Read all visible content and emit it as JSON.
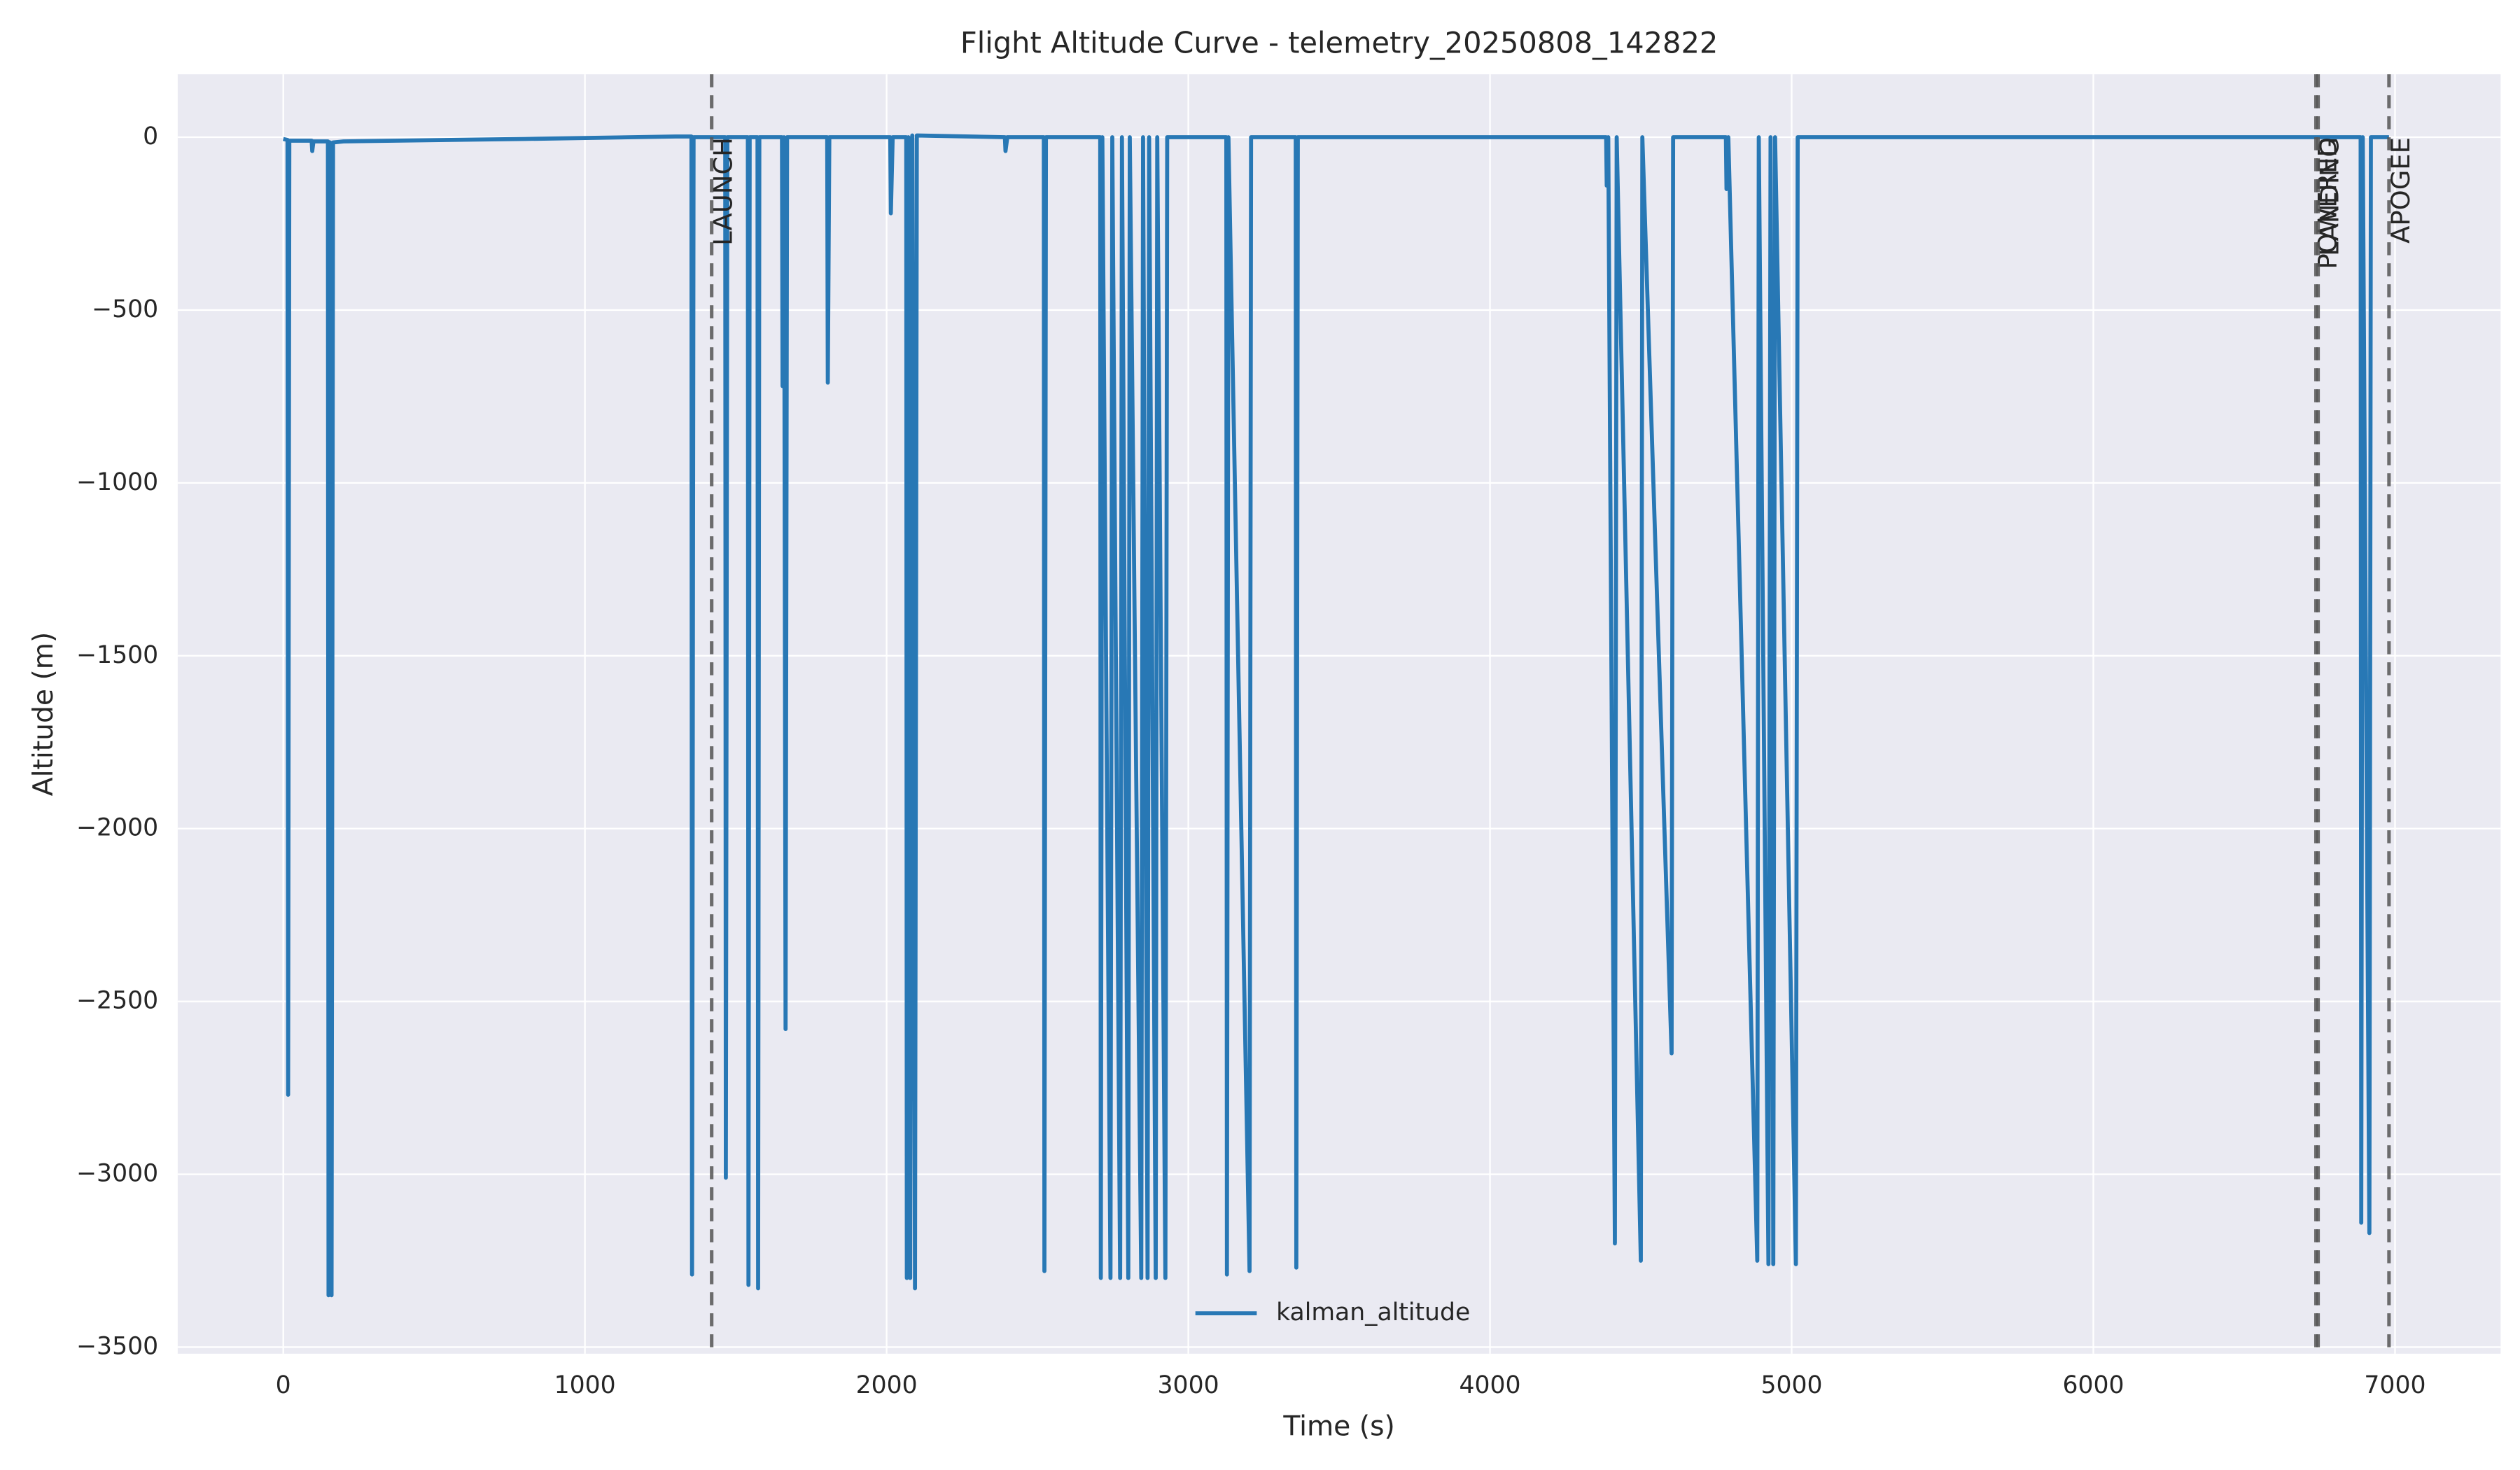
{
  "chart_data": {
    "type": "line",
    "title": "Flight Altitude Curve - telemetry_20250808_142822",
    "x_label": "Time (s)",
    "y_label": "Altitude (m)",
    "x": [
      0,
      14,
      16,
      20,
      94,
      96,
      100,
      148,
      150,
      155,
      160,
      165,
      200,
      800,
      1300,
      1353,
      1355,
      1360,
      1465,
      1467,
      1472,
      1540,
      1542,
      1546,
      1572,
      1574,
      1578,
      1653,
      1655,
      1660,
      1665,
      1670,
      1803,
      1805,
      1810,
      2012,
      2014,
      2020,
      2065,
      2067,
      2072,
      2078,
      2085,
      2094,
      2100,
      2392,
      2394,
      2400,
      2521,
      2523,
      2528,
      2708,
      2710,
      2715,
      2742,
      2748,
      2774,
      2780,
      2801,
      2806,
      2844,
      2850,
      2865,
      2870,
      2892,
      2897,
      2924,
      2930,
      3126,
      3128,
      3133,
      3203,
      3208,
      3356,
      3358,
      3363,
      4385,
      4387,
      4392,
      4414,
      4420,
      4500,
      4505,
      4602,
      4607,
      4782,
      4784,
      4790,
      4886,
      4891,
      4923,
      4930,
      4939,
      4945,
      5014,
      5020,
      6886,
      6888,
      6893,
      6915,
      6920,
      6980
    ],
    "series": [
      {
        "name": "kalman_altitude",
        "color": "#2878b5",
        "values": [
          -5,
          -8,
          -2770,
          -10,
          -10,
          -40,
          -12,
          -12,
          -3350,
          -15,
          -3350,
          -15,
          -12,
          -5,
          2,
          2,
          -3290,
          0,
          0,
          -3010,
          0,
          0,
          -3320,
          0,
          0,
          -3330,
          0,
          0,
          -720,
          0,
          -2580,
          0,
          0,
          -710,
          0,
          0,
          -220,
          0,
          0,
          -3300,
          0,
          -3300,
          5,
          -3330,
          5,
          0,
          -40,
          0,
          0,
          -3280,
          0,
          0,
          -3300,
          0,
          -3300,
          0,
          -3300,
          0,
          -3300,
          0,
          -3300,
          0,
          -3300,
          0,
          -3300,
          0,
          -3300,
          0,
          0,
          -3290,
          0,
          -3280,
          0,
          0,
          -3270,
          0,
          0,
          -140,
          0,
          -3200,
          0,
          -3250,
          0,
          -2650,
          0,
          0,
          -150,
          0,
          -3250,
          0,
          -3260,
          0,
          -3260,
          0,
          -3260,
          0,
          0,
          -3140,
          0,
          -3170,
          0,
          0
        ]
      }
    ],
    "events": [
      {
        "name": "LAUNCH",
        "x": 1420
      },
      {
        "name": "POWERED",
        "x": 6738
      },
      {
        "name": "LANDING",
        "x": 6745
      },
      {
        "name": "APOGEE",
        "x": 6980
      }
    ],
    "xlim": [
      -350,
      7350
    ],
    "ylim": [
      -3519,
      182
    ],
    "xticks": [
      0,
      1000,
      2000,
      3000,
      4000,
      5000,
      6000,
      7000
    ],
    "yticks": [
      0,
      {
        "value": -500,
        "label": "−500"
      },
      {
        "value": -1000,
        "label": "−1000"
      },
      {
        "value": -1500,
        "label": "−1500"
      },
      {
        "value": -2000,
        "label": "−2000"
      },
      {
        "value": -2500,
        "label": "−2500"
      },
      {
        "value": -3000,
        "label": "−3000"
      },
      {
        "value": -3500,
        "label": "−3500"
      }
    ],
    "grid": true,
    "legend": "lower center"
  }
}
